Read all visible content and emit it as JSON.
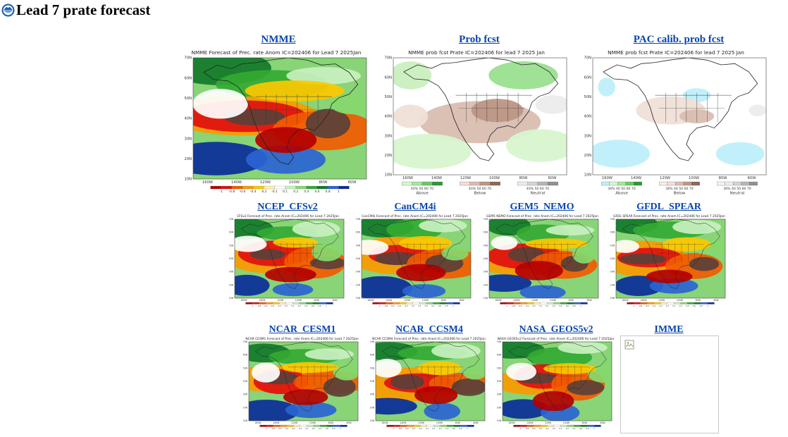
{
  "page": {
    "title": "Lead 7 prate forecast",
    "logo_icon": "noaa-logo-icon"
  },
  "row1": [
    {
      "label": "NMME",
      "map_title": "NMME Forecast of Prec. rate Anom IC=202406 for Lead 7 2025Jan",
      "kind": "anom"
    },
    {
      "label": "Prob fcst",
      "map_title": "NMME prob fcst Prate IC=202406 for lead 7 2025 Jan",
      "kind": "prob"
    },
    {
      "label": "PAC calib. prob fcst",
      "map_title": "NMME prob fcst Prate IC=202406 for lead 7 2025 Jan",
      "kind": "pac"
    }
  ],
  "row2": [
    {
      "label": "NCEP_CFSv2",
      "map_title": "CFSv2 Forecast of Prec. rate Anom IC=202406 for Lead 7 2025Jan"
    },
    {
      "label": "CanCM4i",
      "map_title": "CanCM4i Forecast of Prec. rate Anom IC=202406 for Lead 7 2025Jan"
    },
    {
      "label": "GEM5_NEMO",
      "map_title": "GEM5 NEMO Forecast of Prec. rate Anom IC=202406 for Lead 7 2025Jan"
    },
    {
      "label": "GFDL_SPEAR",
      "map_title": "GFDL SPEAR Forecast of Prec. rate Anom IC=202406 for Lead 7 2025Jan"
    }
  ],
  "row3": [
    {
      "label": "NCAR_CESM1",
      "map_title": "NCAR CESM1 Forecast of Prec. rate Anom IC=202406 for Lead 7 2025Jan"
    },
    {
      "label": "NCAR_CCSM4",
      "map_title": "NCAR CCSM4 Forecast of Prec. rate Anom IC=202406 for Lead 7 2025Jan"
    },
    {
      "label": "NASA_GEOS5v2",
      "map_title": "NASA GEOS5v2 Forecast of Prec. rate Anom IC=202406 for Lead 7 2025Jan"
    },
    {
      "label": "IMME",
      "map_title": "",
      "kind": "broken"
    }
  ],
  "axes": {
    "lat": [
      "70N",
      "60N",
      "50N",
      "40N",
      "30N",
      "20N",
      "10N"
    ],
    "lon_anom": [
      "160W",
      "140W",
      "120W",
      "100W",
      "80W",
      "60W"
    ],
    "lon_prob": [
      "160W",
      "140W",
      "120W",
      "100W",
      "80W",
      "60W"
    ]
  },
  "anom_colorbar": {
    "labels": [
      "-1",
      "-0.8",
      "-0.6",
      "-0.4",
      "-0.2",
      "-0.1",
      "0.1",
      "0.2",
      "0.4",
      "0.6",
      "0.8",
      "1"
    ],
    "colors": [
      "#b30000",
      "#e01010",
      "#f25a00",
      "#fa9a00",
      "#fcc800",
      "#fff0a0",
      "#ffffff",
      "#c8f0c0",
      "#86d86e",
      "#33aa33",
      "#117a2a",
      "#2a64d4",
      "#0a2c9a"
    ]
  },
  "prob_legend": {
    "groups": [
      {
        "name": "Above",
        "ticks": "40% 50 60 70",
        "colors": [
          "#d7f5cf",
          "#a6e69a",
          "#6cc865",
          "#2a9a36"
        ]
      },
      {
        "name": "Below",
        "ticks": "40% 50 60 70",
        "colors": [
          "#efdfd7",
          "#d9bdb0",
          "#bd9686",
          "#8e6756"
        ]
      },
      {
        "name": "Neutral",
        "ticks": "40% 50 60 70",
        "colors": [
          "#ececec",
          "#d4d4d4",
          "#b6b6b6",
          "#909090"
        ]
      }
    ]
  },
  "pac_legend": {
    "groups": [
      {
        "name": "Above",
        "ticks": "36% 40 50 60 70",
        "colors": [
          "#bfeffa",
          "#d7f5cf",
          "#a6e69a",
          "#6cc865",
          "#2a9a36"
        ]
      },
      {
        "name": "Below",
        "ticks": "36% 40 50 60 70",
        "colors": [
          "#f7ece6",
          "#efdfd7",
          "#d9bdb0",
          "#bd9686",
          "#8e6756"
        ]
      },
      {
        "name": "Neutral",
        "ticks": "36% 40 50 60 70",
        "colors": [
          "#f3f3f3",
          "#ececec",
          "#d4d4d4",
          "#b6b6b6",
          "#909090"
        ]
      }
    ]
  },
  "broken_image_icon": "broken-image-icon"
}
